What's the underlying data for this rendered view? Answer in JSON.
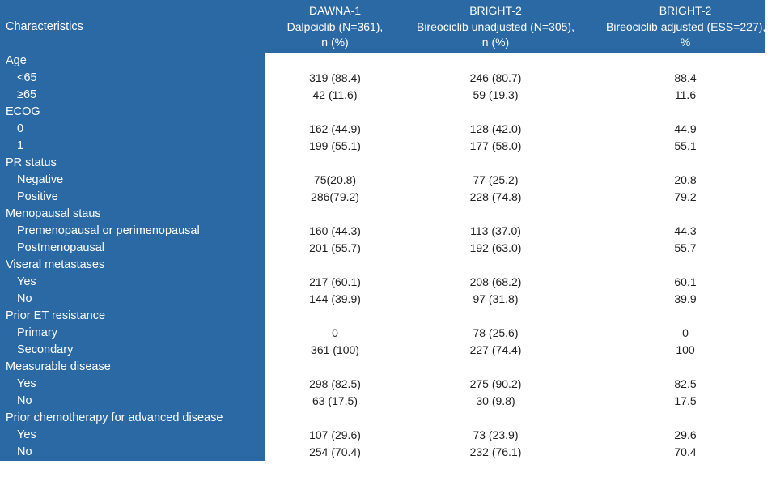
{
  "colors": {
    "header_blue": "#2b69a5",
    "header_text": "#ffffff",
    "value_text": "#1f1f1f",
    "background": "#ffffff"
  },
  "table": {
    "characteristics_label": "Characteristics",
    "columns": [
      {
        "study": "DAWNA-1",
        "arm": "Dalpciclib (N=361),",
        "metric": "n (%)"
      },
      {
        "study": "BRIGHT-2",
        "arm": "Bireociclib unadjusted (N=305),",
        "metric": "n (%)"
      },
      {
        "study": "BRIGHT-2",
        "arm": "Bireociclib adjusted (ESS=227),",
        "metric": "%"
      }
    ],
    "rows": [
      {
        "label": "Age",
        "indent": false,
        "values": [
          "",
          "",
          ""
        ]
      },
      {
        "label": "<65",
        "indent": true,
        "values": [
          "319 (88.4)",
          "246 (80.7)",
          "88.4"
        ]
      },
      {
        "label": "≥65",
        "indent": true,
        "values": [
          "42 (11.6)",
          "59 (19.3)",
          "11.6"
        ]
      },
      {
        "label": "ECOG",
        "indent": false,
        "values": [
          "",
          "",
          ""
        ]
      },
      {
        "label": "0",
        "indent": true,
        "values": [
          "162 (44.9)",
          "128 (42.0)",
          "44.9"
        ]
      },
      {
        "label": "1",
        "indent": true,
        "values": [
          "199 (55.1)",
          "177 (58.0)",
          "55.1"
        ]
      },
      {
        "label": "PR status",
        "indent": false,
        "values": [
          "",
          "",
          ""
        ]
      },
      {
        "label": "Negative",
        "indent": true,
        "values": [
          "75(20.8)",
          "77 (25.2)",
          "20.8"
        ]
      },
      {
        "label": "Positive",
        "indent": true,
        "values": [
          "286(79.2)",
          "228 (74.8)",
          "79.2"
        ]
      },
      {
        "label": "Menopausal staus",
        "indent": false,
        "values": [
          "",
          "",
          ""
        ]
      },
      {
        "label": "Premenopausal or perimenopausal",
        "indent": true,
        "values": [
          "160 (44.3)",
          "113 (37.0)",
          "44.3"
        ]
      },
      {
        "label": "Postmenopausal",
        "indent": true,
        "values": [
          "201 (55.7)",
          "192 (63.0)",
          "55.7"
        ]
      },
      {
        "label": "Viseral metastases",
        "indent": false,
        "values": [
          "",
          "",
          ""
        ]
      },
      {
        "label": "Yes",
        "indent": true,
        "values": [
          "217 (60.1)",
          "208 (68.2)",
          "60.1"
        ]
      },
      {
        "label": "No",
        "indent": true,
        "values": [
          "144 (39.9)",
          "97 (31.8)",
          "39.9"
        ]
      },
      {
        "label": "Prior ET resistance",
        "indent": false,
        "values": [
          "",
          "",
          ""
        ]
      },
      {
        "label": "Primary",
        "indent": true,
        "values": [
          "0",
          "78 (25.6)",
          "0"
        ]
      },
      {
        "label": "Secondary",
        "indent": true,
        "values": [
          "361 (100)",
          "227 (74.4)",
          "100"
        ]
      },
      {
        "label": "Measurable disease",
        "indent": false,
        "values": [
          "",
          "",
          ""
        ]
      },
      {
        "label": "Yes",
        "indent": true,
        "values": [
          "298 (82.5)",
          "275 (90.2)",
          "82.5"
        ]
      },
      {
        "label": "No",
        "indent": true,
        "values": [
          "63 (17.5)",
          "30 (9.8)",
          "17.5"
        ]
      },
      {
        "label": "Prior chemotherapy for advanced disease",
        "indent": false,
        "values": [
          "",
          "",
          ""
        ]
      },
      {
        "label": "Yes",
        "indent": true,
        "values": [
          "107 (29.6)",
          "73 (23.9)",
          "29.6"
        ]
      },
      {
        "label": "No",
        "indent": true,
        "values": [
          "254 (70.4)",
          "232 (76.1)",
          "70.4"
        ]
      }
    ]
  },
  "chart_data": {
    "type": "table",
    "columns": [
      "Characteristics",
      "DAWNA-1 Dalpciclib (N=361), n (%)",
      "BRIGHT-2 Bireociclib unadjusted (N=305), n (%)",
      "BRIGHT-2 Bireociclib adjusted (ESS=227), %"
    ],
    "rows": [
      [
        "Age",
        "",
        "",
        ""
      ],
      [
        "<65",
        "319 (88.4)",
        "246 (80.7)",
        "88.4"
      ],
      [
        "≥65",
        "42 (11.6)",
        "59 (19.3)",
        "11.6"
      ],
      [
        "ECOG",
        "",
        "",
        ""
      ],
      [
        "0",
        "162 (44.9)",
        "128 (42.0)",
        "44.9"
      ],
      [
        "1",
        "199 (55.1)",
        "177 (58.0)",
        "55.1"
      ],
      [
        "PR status",
        "",
        "",
        ""
      ],
      [
        "Negative",
        "75(20.8)",
        "77 (25.2)",
        "20.8"
      ],
      [
        "Positive",
        "286(79.2)",
        "228 (74.8)",
        "79.2"
      ],
      [
        "Menopausal staus",
        "",
        "",
        ""
      ],
      [
        "Premenopausal or perimenopausal",
        "160 (44.3)",
        "113 (37.0)",
        "44.3"
      ],
      [
        "Postmenopausal",
        "201 (55.7)",
        "192 (63.0)",
        "55.7"
      ],
      [
        "Viseral metastases",
        "",
        "",
        ""
      ],
      [
        "Yes",
        "217 (60.1)",
        "208 (68.2)",
        "60.1"
      ],
      [
        "No",
        "144 (39.9)",
        "97 (31.8)",
        "39.9"
      ],
      [
        "Prior ET resistance",
        "",
        "",
        ""
      ],
      [
        "Primary",
        "0",
        "78 (25.6)",
        "0"
      ],
      [
        "Secondary",
        "361 (100)",
        "227 (74.4)",
        "100"
      ],
      [
        "Measurable disease",
        "",
        "",
        ""
      ],
      [
        "Yes",
        "298 (82.5)",
        "275 (90.2)",
        "82.5"
      ],
      [
        "No",
        "63 (17.5)",
        "30 (9.8)",
        "17.5"
      ],
      [
        "Prior chemotherapy for advanced disease",
        "",
        "",
        ""
      ],
      [
        "Yes",
        "107 (29.6)",
        "73 (23.9)",
        "29.6"
      ],
      [
        "No",
        "254 (70.4)",
        "232 (76.1)",
        "70.4"
      ]
    ]
  }
}
